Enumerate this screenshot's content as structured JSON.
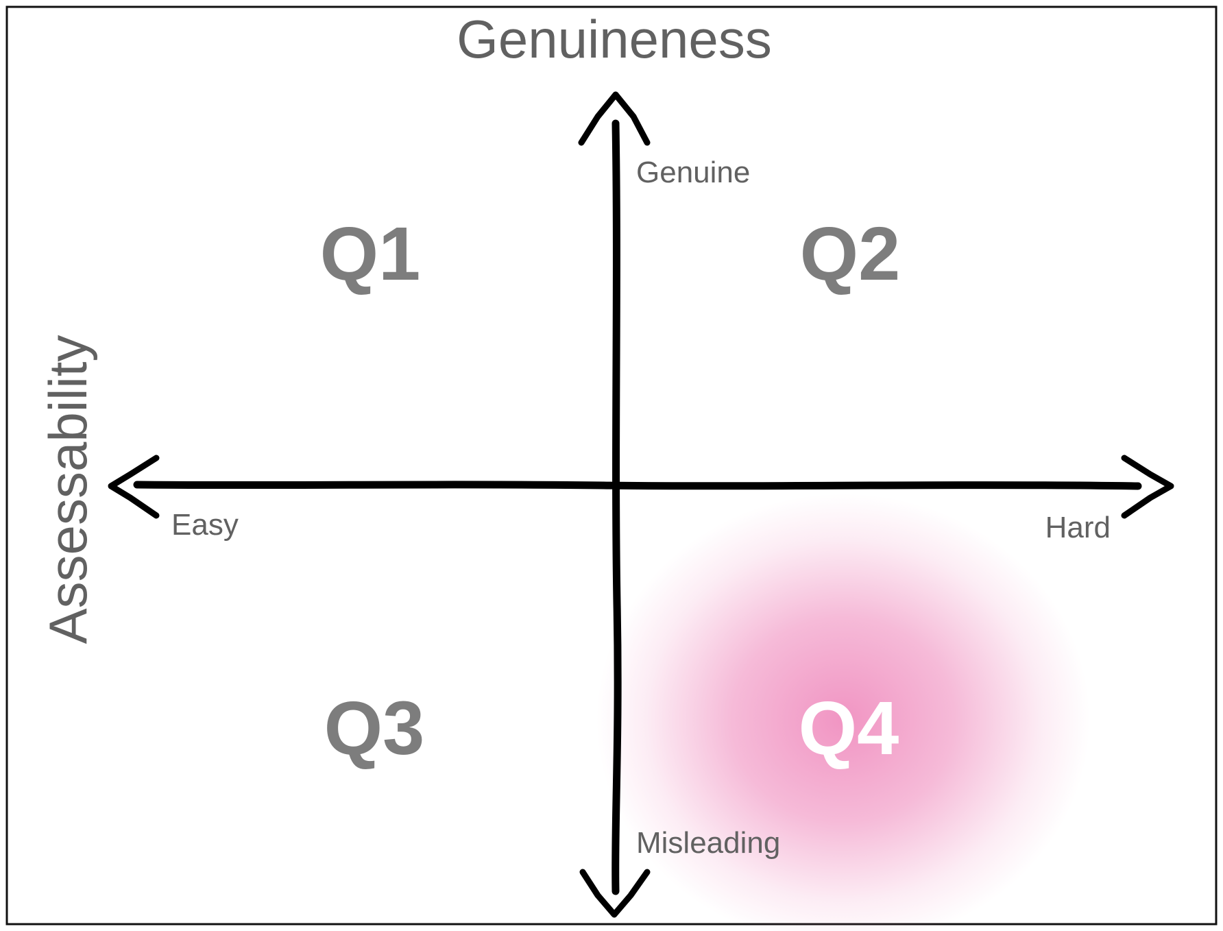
{
  "diagram": {
    "title": "Genuineness",
    "vertical_title": "Assessability",
    "axis_labels": {
      "top": "Genuine",
      "bottom": "Misleading",
      "left": "Easy",
      "right": "Hard"
    },
    "quadrants": [
      {
        "id": "q1",
        "label": "Q1"
      },
      {
        "id": "q2",
        "label": "Q2"
      },
      {
        "id": "q3",
        "label": "Q3"
      },
      {
        "id": "q4",
        "label": "Q4",
        "highlighted": true
      }
    ]
  },
  "colors": {
    "text": "#616161",
    "quadrant_text": "#7d7d7d",
    "highlight_text": "#ffffff",
    "axis": "#000000",
    "highlight": "#ee82b8",
    "border": "#111111"
  }
}
